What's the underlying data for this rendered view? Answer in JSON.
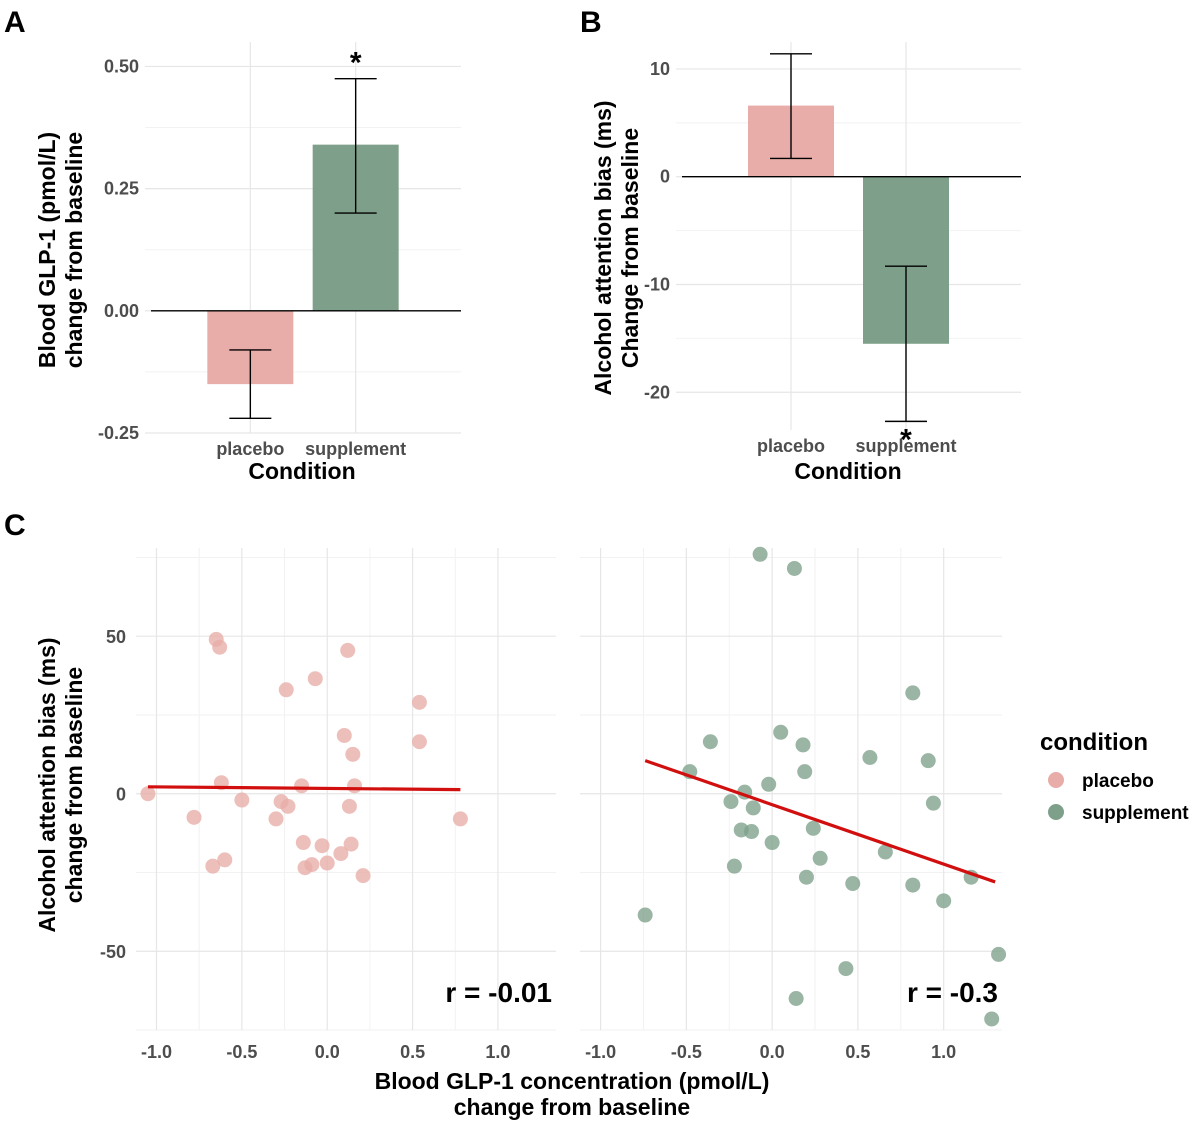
{
  "chart_data": [
    {
      "panel": "A",
      "type": "bar",
      "categories": [
        "placebo",
        "supplement"
      ],
      "values": [
        -0.15,
        0.34
      ],
      "error": [
        [
          -0.22,
          -0.08
        ],
        [
          0.2,
          0.475
        ]
      ],
      "significance": [
        "",
        "*"
      ],
      "xlabel": "Condition",
      "ylabel": [
        "Blood GLP-1 (pmol/L)",
        "change from baseline"
      ],
      "ylim": [
        -0.25,
        0.55
      ],
      "yticks": [
        -0.25,
        0.0,
        0.25,
        0.5
      ],
      "ytick_labels": [
        "-0.25",
        "0.00",
        "0.25",
        "0.50"
      ],
      "grid": true,
      "colors": [
        "#e8ada8",
        "#7ea08a"
      ]
    },
    {
      "panel": "B",
      "type": "bar",
      "categories": [
        "placebo",
        "supplement"
      ],
      "values": [
        6.6,
        -15.5
      ],
      "error": [
        [
          1.7,
          11.4
        ],
        [
          -22.7,
          -8.3
        ]
      ],
      "significance": [
        "",
        "*"
      ],
      "xlabel": "Condition",
      "ylabel": [
        "Alcohol attention bias (ms)",
        "Change from baseline"
      ],
      "ylim": [
        -23.5,
        12.5
      ],
      "yticks": [
        -20,
        -10,
        0,
        10
      ],
      "ytick_labels": [
        "-20",
        "-10",
        "0",
        "10"
      ],
      "grid": true,
      "colors": [
        "#e8ada8",
        "#7ea08a"
      ]
    },
    {
      "panel": "C",
      "type": "scatter",
      "xlabel": [
        "Blood GLP-1 concentration (pmol/L)",
        "change from baseline"
      ],
      "ylabel": [
        "Alcohol attention bias (ms)",
        "change from baseline"
      ],
      "xlim": [
        -1.12,
        1.34
      ],
      "ylim": [
        -75,
        78
      ],
      "xticks": [
        -1.0,
        -0.5,
        0.0,
        0.5,
        1.0
      ],
      "xtick_labels": [
        "-1.0",
        "-0.5",
        "0.0",
        "0.5",
        "1.0"
      ],
      "yticks": [
        -50,
        0,
        50
      ],
      "ytick_labels": [
        "-50",
        "0",
        "50"
      ],
      "grid": true,
      "legend": {
        "title": "condition",
        "position": "right",
        "entries": [
          {
            "label": "placebo",
            "color": "#e8ada8"
          },
          {
            "label": "supplement",
            "color": "#7ea08a"
          }
        ]
      },
      "facets": [
        {
          "condition": "placebo",
          "color": "#e8ada8",
          "r_label": "r = -0.01",
          "fit": {
            "x": [
              -1.05,
              0.78
            ],
            "y": [
              2.2,
              1.3
            ]
          },
          "points": [
            [
              -1.05,
              0.0
            ],
            [
              -0.78,
              -7.5
            ],
            [
              -0.67,
              -23.0
            ],
            [
              -0.65,
              49.0
            ],
            [
              -0.63,
              46.5
            ],
            [
              -0.62,
              3.5
            ],
            [
              -0.6,
              -21.0
            ],
            [
              -0.5,
              -2.0
            ],
            [
              -0.3,
              -8.0
            ],
            [
              -0.27,
              -2.5
            ],
            [
              -0.24,
              33.0
            ],
            [
              -0.23,
              -4.0
            ],
            [
              -0.15,
              2.5
            ],
            [
              -0.14,
              -15.5
            ],
            [
              -0.13,
              -23.5
            ],
            [
              -0.09,
              -22.5
            ],
            [
              -0.07,
              36.5
            ],
            [
              -0.03,
              -16.5
            ],
            [
              0.0,
              -22.0
            ],
            [
              0.08,
              -19.0
            ],
            [
              0.1,
              18.5
            ],
            [
              0.12,
              45.5
            ],
            [
              0.13,
              -4.0
            ],
            [
              0.14,
              -16.0
            ],
            [
              0.15,
              12.5
            ],
            [
              0.16,
              2.5
            ],
            [
              0.21,
              -26.0
            ],
            [
              0.54,
              29.0
            ],
            [
              0.54,
              16.5
            ],
            [
              0.78,
              -8.0
            ]
          ]
        },
        {
          "condition": "supplement",
          "color": "#7ea08a",
          "r_label": "r = -0.3",
          "fit": {
            "x": [
              -0.74,
              1.3
            ],
            "y": [
              10.5,
              -28.0
            ]
          },
          "points": [
            [
              -0.74,
              -38.5
            ],
            [
              -0.48,
              7.0
            ],
            [
              -0.36,
              16.5
            ],
            [
              -0.24,
              -2.5
            ],
            [
              -0.22,
              -23.0
            ],
            [
              -0.18,
              -11.5
            ],
            [
              -0.16,
              0.5
            ],
            [
              -0.12,
              -12.0
            ],
            [
              -0.11,
              -4.5
            ],
            [
              -0.07,
              76.0
            ],
            [
              -0.02,
              3.0
            ],
            [
              0.0,
              -15.5
            ],
            [
              0.05,
              19.5
            ],
            [
              0.13,
              71.5
            ],
            [
              0.14,
              -65.0
            ],
            [
              0.18,
              15.5
            ],
            [
              0.19,
              7.0
            ],
            [
              0.2,
              -26.5
            ],
            [
              0.24,
              -11.0
            ],
            [
              0.28,
              -20.5
            ],
            [
              0.43,
              -55.5
            ],
            [
              0.47,
              -28.5
            ],
            [
              0.57,
              11.5
            ],
            [
              0.66,
              -18.5
            ],
            [
              0.82,
              32.0
            ],
            [
              0.82,
              -29.0
            ],
            [
              0.91,
              10.5
            ],
            [
              0.94,
              -3.0
            ],
            [
              1.0,
              -34.0
            ],
            [
              1.16,
              -26.5
            ],
            [
              1.28,
              -71.5
            ],
            [
              1.32,
              -51.0
            ]
          ]
        }
      ]
    }
  ]
}
